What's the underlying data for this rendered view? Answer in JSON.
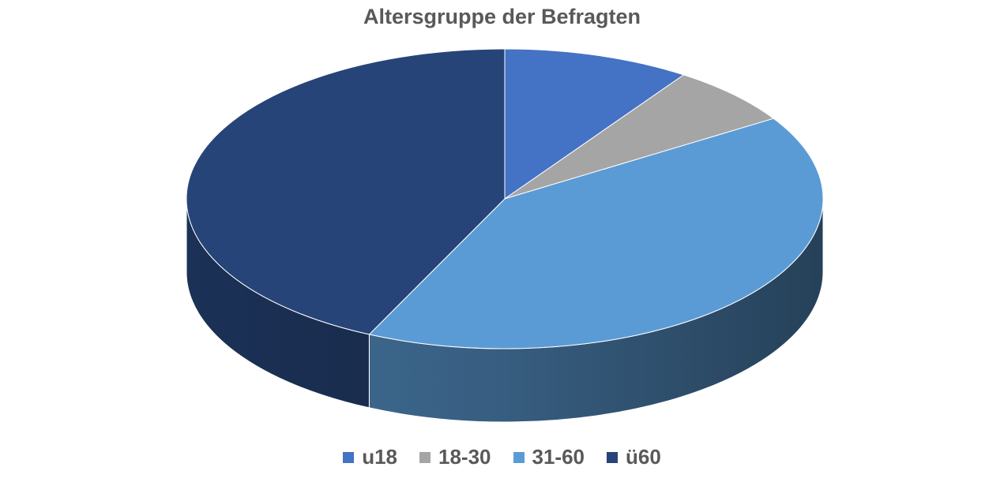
{
  "chart_data": {
    "type": "pie",
    "title": "Altersgruppe der Befragten",
    "categories": [
      "u18",
      "18-30",
      "31-60",
      "ü60"
    ],
    "values": [
      9.5,
      6.5,
      41,
      43
    ],
    "colors": [
      "#4472c4",
      "#a5a5a5",
      "#5b9bd5",
      "#264478"
    ],
    "legend_position": "bottom",
    "style": "3d"
  }
}
